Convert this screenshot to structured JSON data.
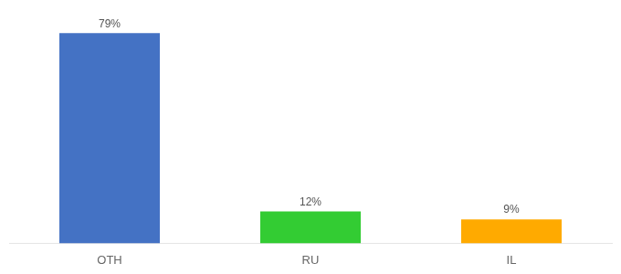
{
  "chart_data": {
    "type": "bar",
    "categories": [
      "OTH",
      "RU",
      "IL"
    ],
    "values": [
      79,
      12,
      9
    ],
    "value_labels": [
      "79%",
      "12%",
      "9%"
    ],
    "colors": [
      "#4472c4",
      "#33cc33",
      "#ffaa00"
    ],
    "ylim": [
      0,
      88
    ],
    "grid": false,
    "data_labels": true,
    "tick_labels": "x"
  }
}
